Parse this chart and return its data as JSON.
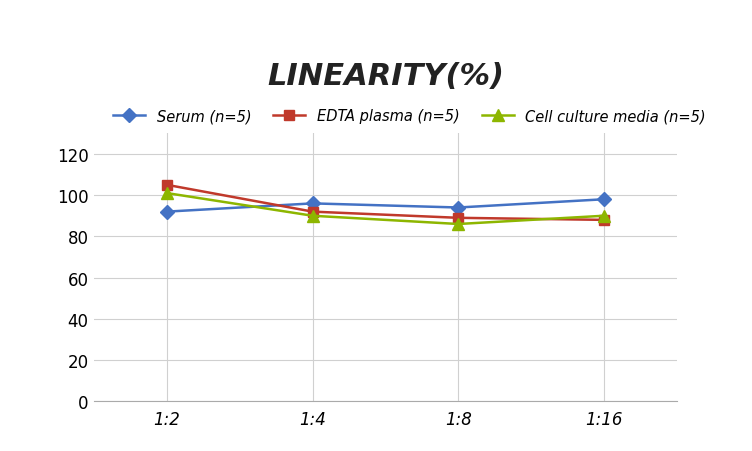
{
  "title": "LINEARITY(%)",
  "x_labels": [
    "1:2",
    "1:4",
    "1:8",
    "1:16"
  ],
  "x_positions": [
    0,
    1,
    2,
    3
  ],
  "series": [
    {
      "label": "Serum (n=5)",
      "values": [
        92,
        96,
        94,
        98
      ],
      "color": "#4472C4",
      "marker": "D",
      "marker_size": 7,
      "linewidth": 1.8
    },
    {
      "label": "EDTA plasma (n=5)",
      "values": [
        105,
        92,
        89,
        88
      ],
      "color": "#C0392B",
      "marker": "s",
      "marker_size": 7,
      "linewidth": 1.8
    },
    {
      "label": "Cell culture media (n=5)",
      "values": [
        101,
        90,
        86,
        90
      ],
      "color": "#8DB600",
      "marker": "^",
      "marker_size": 8,
      "linewidth": 1.8
    }
  ],
  "ylim": [
    0,
    130
  ],
  "yticks": [
    0,
    20,
    40,
    60,
    80,
    100,
    120
  ],
  "background_color": "#FFFFFF",
  "grid_color": "#D0D0D0",
  "title_fontsize": 22,
  "legend_fontsize": 10.5,
  "tick_fontsize": 12
}
